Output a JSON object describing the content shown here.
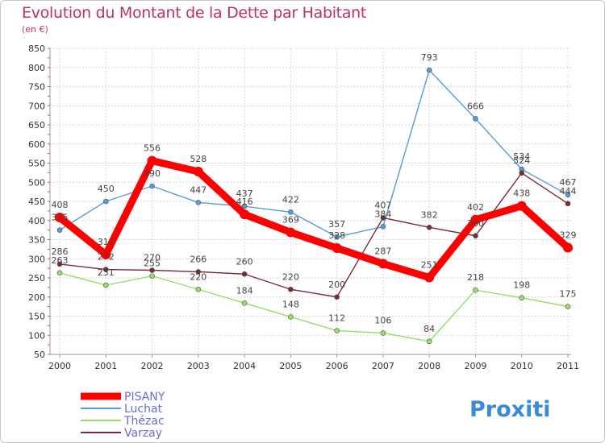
{
  "header": {
    "title": "Evolution du Montant de la Dette par Habitant",
    "subtitle": "(en €)"
  },
  "logo": {
    "text": "Proxiti"
  },
  "chart_data": {
    "type": "line",
    "x": [
      "2000",
      "2001",
      "2002",
      "2003",
      "2004",
      "2005",
      "2006",
      "2007",
      "2008",
      "2009",
      "2010",
      "2011"
    ],
    "ylim": [
      50,
      850
    ],
    "yticks": [
      50,
      100,
      150,
      200,
      250,
      300,
      350,
      400,
      450,
      500,
      550,
      600,
      650,
      700,
      750,
      800,
      850
    ],
    "grid": true,
    "legend_position": "bottom-left",
    "series": [
      {
        "name": "PISANY",
        "color": "#ff0000",
        "values": [
          408,
          311,
          556,
          528,
          416,
          369,
          328,
          287,
          251,
          402,
          438,
          329
        ]
      },
      {
        "name": "Luchat",
        "color": "#5a9ad6",
        "values": [
          375,
          450,
          490,
          447,
          437,
          422,
          357,
          384,
          793,
          666,
          534,
          467
        ]
      },
      {
        "name": "Thézac",
        "color": "#99dd66",
        "values": [
          263,
          231,
          255,
          220,
          184,
          148,
          112,
          106,
          84,
          218,
          198,
          175
        ]
      },
      {
        "name": "Varzay",
        "color": "#7a2b35",
        "values": [
          286,
          272,
          270,
          266,
          260,
          220,
          200,
          407,
          382,
          360,
          524,
          444
        ]
      }
    ]
  }
}
